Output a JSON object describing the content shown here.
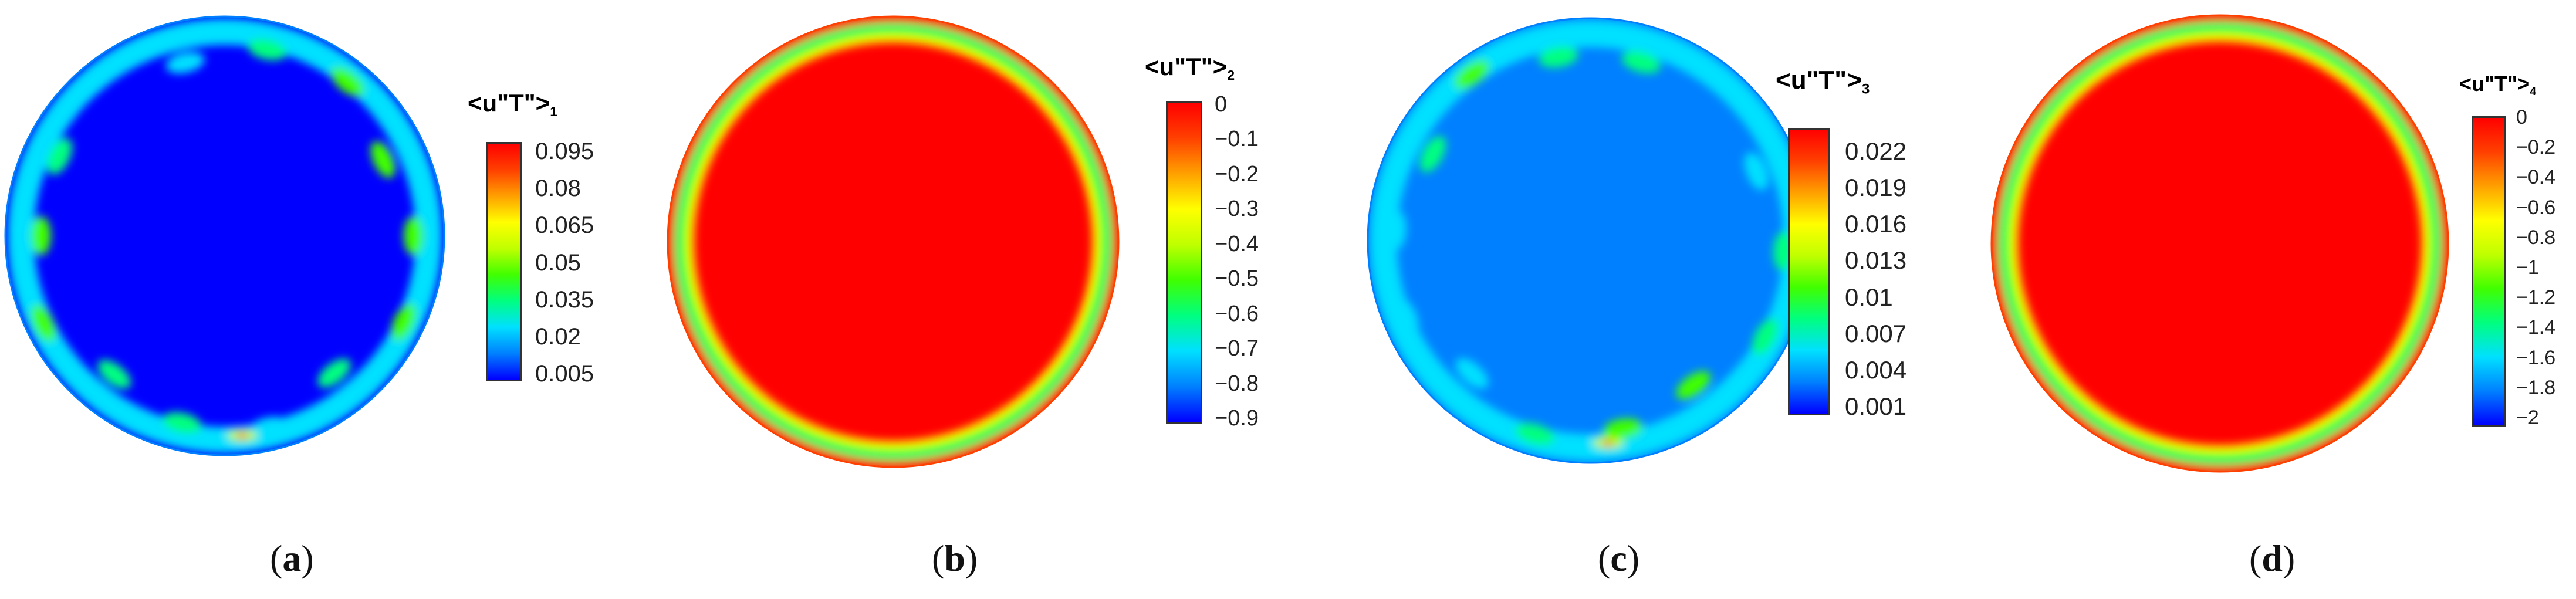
{
  "panels": [
    {
      "id": "a",
      "caption_letter": "a",
      "colorbar": {
        "title_main": "<u\"T\">",
        "title_sub": "1",
        "ticks": [
          "0.095",
          "0.08",
          "0.065",
          "0.05",
          "0.035",
          "0.02",
          "0.005"
        ],
        "min": 0.005,
        "max": 0.105
      },
      "field": {
        "interior_level": 0.05,
        "ring_level": 0.35,
        "hotspot_level": 1.0,
        "edge_level": 0.08
      }
    },
    {
      "id": "b",
      "caption_letter": "b",
      "colorbar": {
        "title_main": "<u\"T\">",
        "title_sub": "2",
        "ticks": [
          "0",
          "-0.1",
          "-0.2",
          "-0.3",
          "-0.4",
          "-0.5",
          "-0.6",
          "-0.7",
          "-0.8",
          "-0.9"
        ],
        "min": -0.9,
        "max": 0
      },
      "field": {
        "interior_level": 1.0,
        "ring_level": 0.45,
        "edge_level": 0.85
      }
    },
    {
      "id": "c",
      "caption_letter": "c",
      "colorbar": {
        "title_main": "<u\"T\">",
        "title_sub": "3",
        "ticks": [
          "0.022",
          "0.019",
          "0.016",
          "0.013",
          "0.01",
          "0.007",
          "0.004",
          "0.001"
        ],
        "min": 0.001,
        "max": 0.024
      },
      "field": {
        "interior_level": 0.12,
        "ring_level": 0.3,
        "hotspot_level": 1.0,
        "edge_level": 0.1
      }
    },
    {
      "id": "d",
      "caption_letter": "d",
      "colorbar": {
        "title_main": "<u\"T\">",
        "title_sub": "4",
        "ticks": [
          "0",
          "-0.2",
          "-0.4",
          "-0.6",
          "-0.8",
          "-1",
          "-1.2",
          "-1.4",
          "-1.6",
          "-1.8",
          "-2"
        ],
        "min": -2,
        "max": 0
      },
      "field": {
        "interior_level": 1.0,
        "ring_level": 0.5,
        "edge_level": 0.9
      }
    }
  ],
  "colormap": [
    "#0000ff",
    "#0080ff",
    "#00e0ff",
    "#00ff80",
    "#40ff00",
    "#c0ff00",
    "#ffff00",
    "#ffa000",
    "#ff4000",
    "#ff0000"
  ]
}
